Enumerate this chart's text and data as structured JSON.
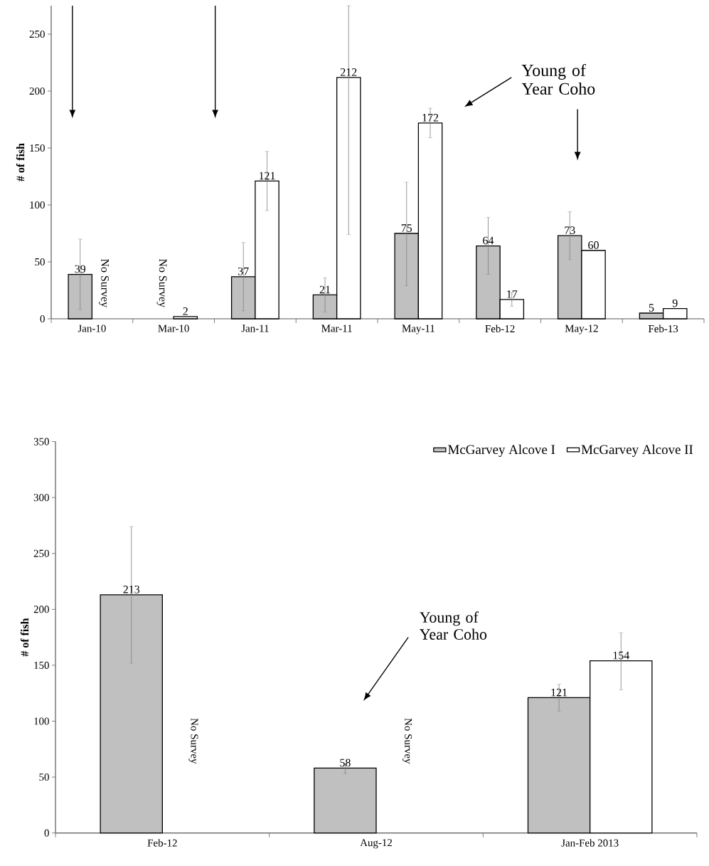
{
  "chart_data": [
    {
      "type": "bar",
      "categories": [
        "Jan-10",
        "Mar-10",
        "Jan-11",
        "Mar-11",
        "May-11",
        "Feb-12",
        "May-12",
        "Feb-13"
      ],
      "series": [
        {
          "color": "#c0c0c0",
          "values": [
            39,
            null,
            37,
            21,
            75,
            64,
            73,
            5
          ],
          "errors": [
            [
              8,
              70
            ],
            null,
            [
              7,
              67
            ],
            [
              6,
              36
            ],
            [
              29,
              120
            ],
            [
              39,
              89
            ],
            [
              52,
              94
            ],
            null
          ]
        },
        {
          "color": "#ffffff",
          "values": [
            null,
            2,
            121,
            212,
            172,
            17,
            60,
            9
          ],
          "errors": [
            null,
            null,
            [
              95,
              147
            ],
            [
              74,
              275
            ],
            [
              159,
              185
            ],
            [
              11,
              23
            ],
            null,
            null
          ]
        }
      ],
      "ylabel": "# of fish",
      "ylim": [
        0,
        275
      ],
      "yticks": [
        0,
        50,
        100,
        150,
        200,
        250
      ],
      "data_labels": true,
      "annotations": [
        "Young of Year Coho",
        "No Survey",
        "No Survey"
      ]
    },
    {
      "type": "bar",
      "categories": [
        "Feb-12",
        "Aug-12",
        "Jan-Feb 2013"
      ],
      "series": [
        {
          "name": "McGarvey Alcove I",
          "color": "#c0c0c0",
          "values": [
            213,
            58,
            121
          ],
          "errors": [
            [
              152,
              274
            ],
            [
              53,
              62
            ],
            [
              109,
              133
            ]
          ]
        },
        {
          "name": "McGarvey Alcove II",
          "color": "#ffffff",
          "values": [
            null,
            null,
            154
          ],
          "errors": [
            null,
            null,
            [
              128,
              179
            ]
          ]
        }
      ],
      "ylabel": "# of fish",
      "ylim": [
        0,
        350
      ],
      "yticks": [
        0,
        50,
        100,
        150,
        200,
        250,
        300,
        350
      ],
      "data_labels": true,
      "legend": "top right",
      "annotations": [
        "Young of Year Coho",
        "No Survey",
        "No Survey"
      ]
    }
  ]
}
